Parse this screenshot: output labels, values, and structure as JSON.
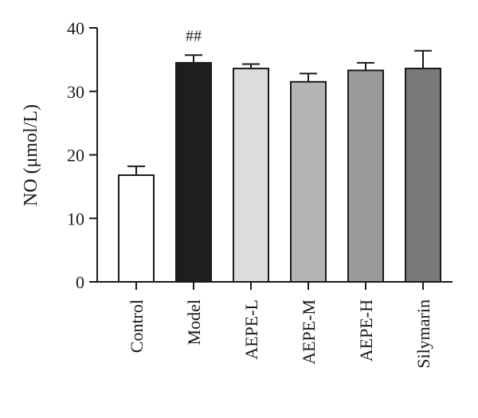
{
  "chart_data": {
    "type": "bar",
    "title": "",
    "xlabel": "",
    "ylabel": "NO (μmol/L)",
    "ylim": [
      0,
      40
    ],
    "yticks": [
      0,
      10,
      20,
      30,
      40
    ],
    "grid": false,
    "categories": [
      "Control",
      "Model",
      "AEPE-L",
      "AEPE-M",
      "AEPE-H",
      "Silymarin"
    ],
    "values": [
      16.8,
      34.5,
      33.6,
      31.5,
      33.3,
      33.6
    ],
    "errors": [
      1.4,
      1.2,
      0.7,
      1.3,
      1.2,
      2.8
    ],
    "colors": [
      "#ffffff",
      "#1e1e1e",
      "#dcdcdc",
      "#b4b4b4",
      "#9a9a9a",
      "#7a7a7a"
    ],
    "annotations": [
      "",
      "##",
      "",
      "",
      "",
      ""
    ]
  }
}
